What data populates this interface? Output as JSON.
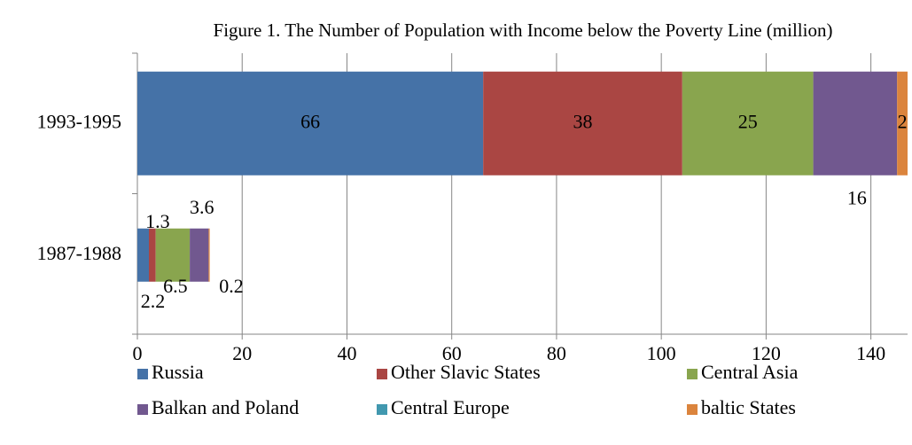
{
  "chart_data": {
    "type": "stacked-bar-horizontal",
    "title": "Figure 1. The Number of Population with Income below the Poverty Line (million)",
    "categories": [
      "1987-1988",
      "1993-1995"
    ],
    "series": [
      {
        "name": "Russia",
        "color": "#4572A7",
        "values": [
          2.2,
          66
        ]
      },
      {
        "name": "Other Slavic States",
        "color": "#AA4643",
        "values": [
          1.3,
          38
        ]
      },
      {
        "name": "Central Asia",
        "color": "#89A54E",
        "values": [
          6.5,
          25
        ]
      },
      {
        "name": "Balkan and Poland",
        "color": "#71588F",
        "values": [
          3.6,
          16
        ]
      },
      {
        "name": "Central Europe",
        "color": "#4198AF",
        "values": [
          0,
          0
        ]
      },
      {
        "name": "baltic States",
        "color": "#DB843D",
        "values": [
          0.2,
          2
        ]
      }
    ],
    "xlim": [
      0,
      147
    ],
    "xticks": [
      0,
      20,
      40,
      60,
      80,
      100,
      120,
      140
    ],
    "grid": true,
    "legend": "bottom"
  }
}
